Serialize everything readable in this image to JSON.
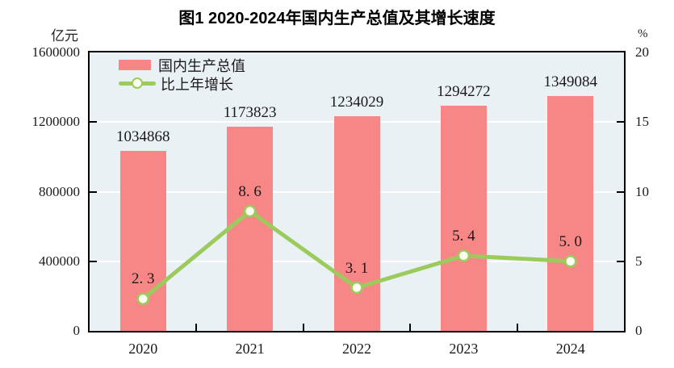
{
  "title": "图1  2020-2024年国内生产总值及其增长速度",
  "axes": {
    "left_unit": "亿元",
    "right_unit": "%",
    "left_ticks": [
      "0",
      "400000",
      "800000",
      "1200000",
      "1600000"
    ],
    "right_ticks": [
      "0",
      "5",
      "10",
      "15",
      "20"
    ]
  },
  "legend": {
    "items": [
      {
        "label": "国内生产总值",
        "marker": "bar-swatch"
      },
      {
        "label": "比上年增长",
        "marker": "line-swatch"
      }
    ]
  },
  "colors": {
    "bar": "#F78787",
    "line": "#9CCB5D",
    "marker_fill": "#FCFEF0",
    "plot_background": "#EAF1F5",
    "gridline": "#FFFFFF",
    "axis_frame": "#000000"
  },
  "chart_data": {
    "type": "bar+line",
    "categories": [
      "2020",
      "2021",
      "2022",
      "2023",
      "2024"
    ],
    "series": [
      {
        "name": "国内生产总值",
        "type": "bar",
        "axis": "left",
        "unit": "亿元",
        "values": [
          1034868,
          1173823,
          1234029,
          1294272,
          1349084
        ],
        "value_labels": [
          "1034868",
          "1173823",
          "1234029",
          "1294272",
          "1349084"
        ]
      },
      {
        "name": "比上年增长",
        "type": "line",
        "axis": "right",
        "unit": "%",
        "values": [
          2.3,
          8.6,
          3.1,
          5.4,
          5.0
        ],
        "value_labels": [
          "2. 3",
          "8. 6",
          "3. 1",
          "5. 4",
          "5. 0"
        ]
      }
    ],
    "left_axis": {
      "unit": "亿元",
      "min": 0,
      "max": 1600000,
      "tick_interval": 400000
    },
    "right_axis": {
      "unit": "%",
      "min": 0,
      "max": 20,
      "tick_interval": 5
    },
    "grid": true,
    "legend_position": "inside-top-left",
    "title": "图1  2020-2024年国内生产总值及其增长速度"
  }
}
